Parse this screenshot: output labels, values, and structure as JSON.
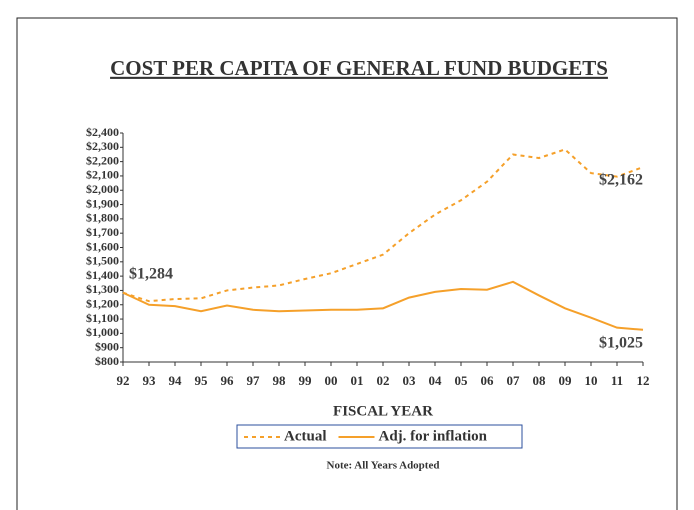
{
  "chart_data": {
    "type": "line",
    "title": "COST PER CAPITA OF GENERAL FUND BUDGETS",
    "x_label": "FISCAL YEAR",
    "note": "Note: All Years Adopted",
    "categories": [
      "92",
      "93",
      "94",
      "95",
      "96",
      "97",
      "98",
      "99",
      "00",
      "01",
      "02",
      "03",
      "04",
      "05",
      "06",
      "07",
      "08",
      "09",
      "10",
      "11",
      "12"
    ],
    "series": [
      {
        "name": "Actual",
        "color": "#f5a02a",
        "dash": true,
        "values": [
          1284,
          1225,
          1240,
          1245,
          1300,
          1320,
          1335,
          1380,
          1420,
          1485,
          1550,
          1700,
          1830,
          1930,
          2060,
          2250,
          2225,
          2285,
          2120,
          2095,
          2162
        ],
        "value_labels": [
          "$1,284",
          null,
          null,
          null,
          null,
          null,
          null,
          null,
          null,
          null,
          null,
          null,
          null,
          null,
          null,
          null,
          null,
          null,
          null,
          null,
          "$2,162"
        ]
      },
      {
        "name": "Adj. for inflation",
        "color": "#f5a02a",
        "dash": false,
        "values": [
          1284,
          1200,
          1190,
          1155,
          1195,
          1165,
          1155,
          1160,
          1165,
          1165,
          1175,
          1250,
          1290,
          1310,
          1305,
          1360,
          1265,
          1175,
          1110,
          1040,
          1025
        ],
        "value_labels": [
          null,
          null,
          null,
          null,
          null,
          null,
          null,
          null,
          null,
          null,
          null,
          null,
          null,
          null,
          null,
          null,
          null,
          null,
          null,
          null,
          "$1,025"
        ]
      }
    ],
    "ylim": [
      800,
      2400
    ],
    "yticks": [
      {
        "value": 800,
        "label": "$800"
      },
      {
        "value": 900,
        "label": "$900"
      },
      {
        "value": 1000,
        "label": "$1,000"
      },
      {
        "value": 1100,
        "label": "$1,100"
      },
      {
        "value": 1200,
        "label": "$1,200"
      },
      {
        "value": 1300,
        "label": "$1,300"
      },
      {
        "value": 1400,
        "label": "$1,400"
      },
      {
        "value": 1500,
        "label": "$1,500"
      },
      {
        "value": 1600,
        "label": "$1,600"
      },
      {
        "value": 1700,
        "label": "$1,700"
      },
      {
        "value": 1800,
        "label": "$1,800"
      },
      {
        "value": 1900,
        "label": "$1,900"
      },
      {
        "value": 2000,
        "label": "$2,000"
      },
      {
        "value": 2100,
        "label": "$2,100"
      },
      {
        "value": 2200,
        "label": "$2,200"
      },
      {
        "value": 2300,
        "label": "$2,300"
      },
      {
        "value": 2400,
        "label": "$2,400"
      }
    ],
    "grid": false
  }
}
